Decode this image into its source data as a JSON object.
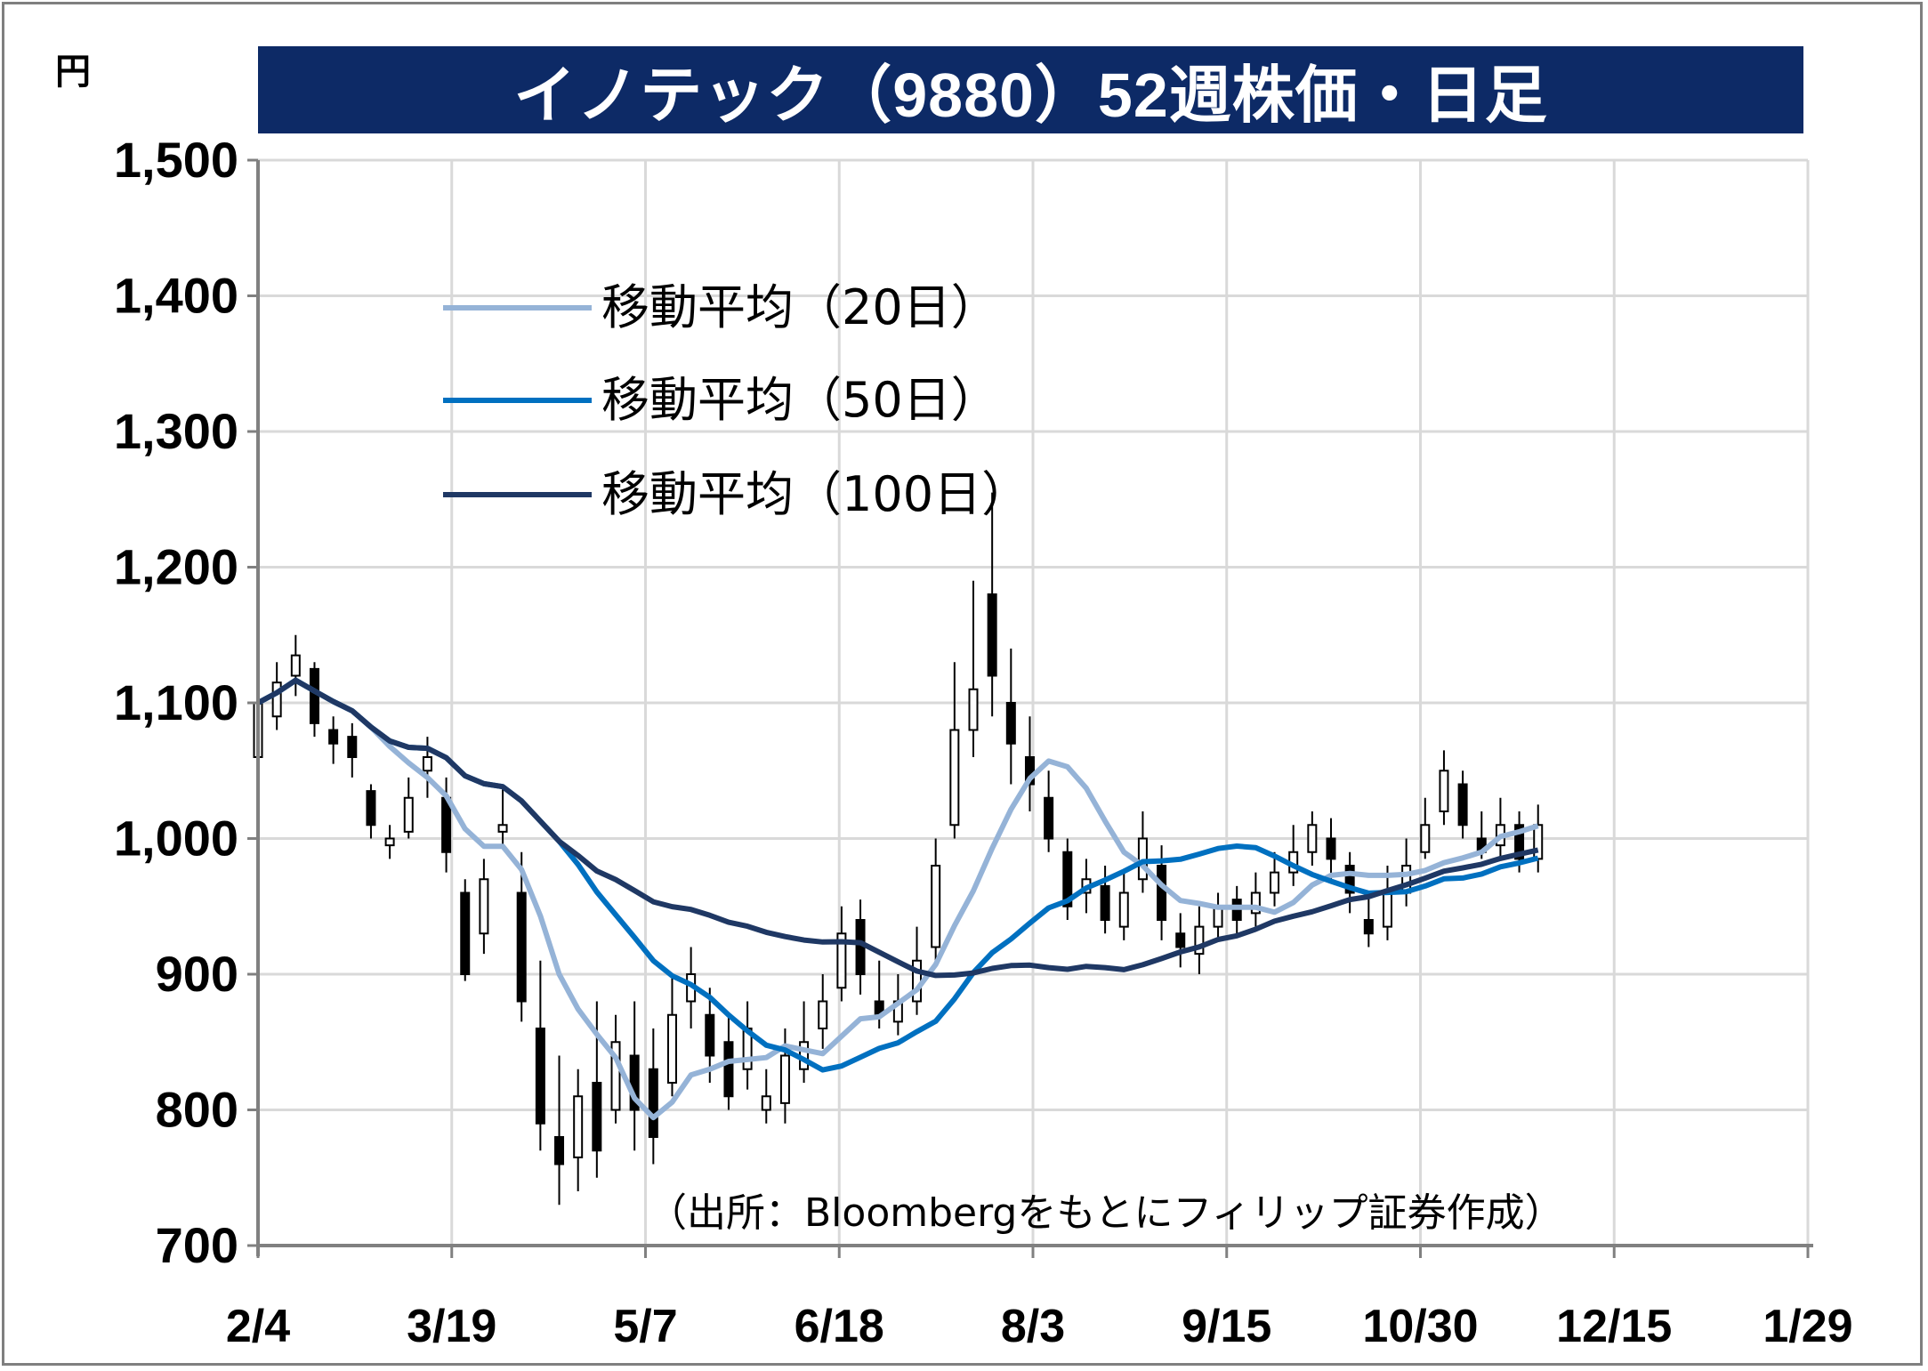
{
  "header": {
    "unit": "円",
    "title": "イノテック（9880）52週株価・日足"
  },
  "source_note": "（出所：Bloombergをもとにフィリップ証券作成）",
  "legend": [
    {
      "label": "移動平均（20日）",
      "color": "#95b3d7"
    },
    {
      "label": "移動平均（50日）",
      "color": "#0070c0"
    },
    {
      "label": "移動平均（100日）",
      "color": "#1f3864"
    }
  ],
  "chart_data": {
    "type": "candlestick",
    "ylim": [
      700,
      1500
    ],
    "yticks": [
      "700",
      "800",
      "900",
      "1,000",
      "1,100",
      "1,200",
      "1,300",
      "1,400",
      "1,500"
    ],
    "ytick_values": [
      700,
      800,
      900,
      1000,
      1100,
      1200,
      1300,
      1400,
      1500
    ],
    "xticks": [
      "2/4",
      "3/19",
      "5/7",
      "6/18",
      "8/3",
      "9/15",
      "10/30",
      "12/15",
      "1/29"
    ],
    "trading_days": 248,
    "grid": true,
    "candles": [
      [
        0,
        1060,
        1100,
        1120,
        1055
      ],
      [
        3,
        1090,
        1115,
        1130,
        1080
      ],
      [
        6,
        1120,
        1135,
        1150,
        1105
      ],
      [
        9,
        1125,
        1085,
        1130,
        1075
      ],
      [
        12,
        1080,
        1070,
        1090,
        1055
      ],
      [
        15,
        1075,
        1060,
        1085,
        1045
      ],
      [
        18,
        1035,
        1010,
        1040,
        1000
      ],
      [
        21,
        995,
        1000,
        1010,
        985
      ],
      [
        24,
        1005,
        1030,
        1045,
        1000
      ],
      [
        27,
        1050,
        1060,
        1075,
        1030
      ],
      [
        30,
        1030,
        990,
        1045,
        975
      ],
      [
        33,
        960,
        900,
        970,
        895
      ],
      [
        36,
        930,
        970,
        985,
        915
      ],
      [
        39,
        1005,
        1010,
        1040,
        995
      ],
      [
        42,
        960,
        880,
        990,
        865
      ],
      [
        45,
        860,
        790,
        910,
        770
      ],
      [
        48,
        780,
        760,
        840,
        730
      ],
      [
        51,
        765,
        810,
        830,
        740
      ],
      [
        54,
        820,
        770,
        880,
        750
      ],
      [
        57,
        800,
        850,
        870,
        790
      ],
      [
        60,
        840,
        800,
        880,
        770
      ],
      [
        63,
        830,
        780,
        860,
        760
      ],
      [
        66,
        820,
        870,
        900,
        810
      ],
      [
        69,
        880,
        900,
        920,
        860
      ],
      [
        72,
        870,
        840,
        890,
        820
      ],
      [
        75,
        850,
        810,
        870,
        800
      ],
      [
        78,
        830,
        860,
        880,
        815
      ],
      [
        81,
        800,
        810,
        830,
        790
      ],
      [
        84,
        805,
        840,
        860,
        790
      ],
      [
        87,
        830,
        850,
        880,
        820
      ],
      [
        90,
        860,
        880,
        900,
        845
      ],
      [
        93,
        890,
        930,
        950,
        880
      ],
      [
        96,
        940,
        900,
        955,
        885
      ],
      [
        99,
        880,
        870,
        910,
        860
      ],
      [
        102,
        865,
        880,
        900,
        855
      ],
      [
        105,
        880,
        910,
        935,
        870
      ],
      [
        108,
        920,
        980,
        1000,
        905
      ],
      [
        111,
        1010,
        1080,
        1130,
        1000
      ],
      [
        114,
        1080,
        1110,
        1190,
        1060
      ],
      [
        117,
        1180,
        1120,
        1255,
        1090
      ],
      [
        120,
        1100,
        1070,
        1140,
        1040
      ],
      [
        123,
        1060,
        1040,
        1090,
        1020
      ],
      [
        126,
        1030,
        1000,
        1050,
        990
      ],
      [
        129,
        990,
        950,
        1000,
        940
      ],
      [
        132,
        960,
        970,
        985,
        945
      ],
      [
        135,
        965,
        940,
        980,
        930
      ],
      [
        138,
        935,
        960,
        975,
        925
      ],
      [
        141,
        970,
        1000,
        1020,
        960
      ],
      [
        144,
        980,
        940,
        995,
        925
      ],
      [
        147,
        930,
        920,
        945,
        905
      ],
      [
        150,
        915,
        935,
        950,
        900
      ],
      [
        153,
        935,
        950,
        960,
        925
      ],
      [
        156,
        955,
        940,
        965,
        930
      ],
      [
        159,
        945,
        960,
        975,
        935
      ],
      [
        162,
        960,
        975,
        990,
        950
      ],
      [
        165,
        975,
        990,
        1010,
        965
      ],
      [
        168,
        990,
        1010,
        1020,
        980
      ],
      [
        171,
        1000,
        985,
        1015,
        970
      ],
      [
        174,
        980,
        960,
        990,
        945
      ],
      [
        177,
        940,
        930,
        960,
        920
      ],
      [
        180,
        935,
        960,
        980,
        925
      ],
      [
        183,
        960,
        980,
        1000,
        950
      ],
      [
        186,
        990,
        1010,
        1030,
        985
      ],
      [
        189,
        1020,
        1050,
        1065,
        1010
      ],
      [
        192,
        1040,
        1010,
        1050,
        1000
      ],
      [
        195,
        1000,
        990,
        1020,
        985
      ],
      [
        198,
        995,
        1010,
        1030,
        985
      ],
      [
        201,
        1010,
        985,
        1020,
        975
      ],
      [
        204,
        985,
        1010,
        1025,
        975
      ]
    ]
  }
}
